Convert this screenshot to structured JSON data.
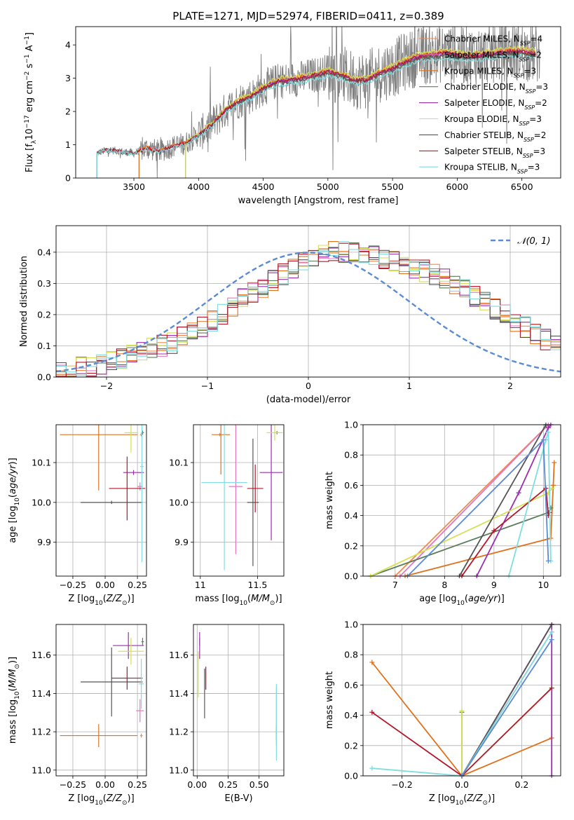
{
  "figure": {
    "title": "PLATE=1271, MJD=52974, FIBERID=0411, z=0.389"
  },
  "colors": {
    "chabrier_miles": "#f08a4b",
    "salpeter_miles": "#e377c2",
    "kroupa_miles": "#e0711c",
    "chabrier_elodie": "#5a7d5a",
    "salpeter_elodie": "#9b2fae",
    "kroupa_elodie": "#d4e157",
    "chabrier_stelib": "#555555",
    "salpeter_stelib": "#b2182b",
    "kroupa_stelib": "#80dde0",
    "data_gray": "#808080",
    "normal_dashed": "#5b8bd6",
    "grid": "#b0b0b0"
  },
  "chart_data": [
    {
      "id": "spectrum",
      "type": "line",
      "title": "PLATE=1271, MJD=52974, FIBERID=0411, z=0.389",
      "xlabel": "wavelength [Angstrom, rest frame]",
      "ylabel": "Flux [f_λ 10^-17 erg cm^-2 s^-1 A^-1]",
      "xlim": [
        3050,
        6800
      ],
      "ylim": [
        0,
        4.55
      ],
      "xticks": [
        3500,
        4000,
        4500,
        5000,
        5500,
        6000,
        6500
      ],
      "yticks": [
        0,
        1,
        2,
        3,
        4
      ],
      "grid": false,
      "legend_position": "top-right",
      "data_series": {
        "name": "",
        "x": [
          3215,
          3300,
          3400,
          3500,
          3600,
          3700,
          3800,
          3900,
          4000,
          4100,
          4200,
          4300,
          4400,
          4500,
          4600,
          4700,
          4800,
          4900,
          5000,
          5100,
          5200,
          5300,
          5400,
          5500,
          5600,
          5700,
          5800,
          5900,
          6000,
          6100,
          6200,
          6300,
          6400,
          6500,
          6600,
          6640
        ],
        "y": [
          0.75,
          0.85,
          0.8,
          0.75,
          0.9,
          0.8,
          0.95,
          1.05,
          1.3,
          1.6,
          2.0,
          2.3,
          2.45,
          2.7,
          2.9,
          2.95,
          3.0,
          3.1,
          3.2,
          3.1,
          2.95,
          2.95,
          3.15,
          3.3,
          3.5,
          3.65,
          3.7,
          3.75,
          3.7,
          3.65,
          3.7,
          3.75,
          3.8,
          3.8,
          3.75,
          3.7
        ]
      },
      "models": [
        {
          "name": "Chabrier MILES, N_SSP=4",
          "legend_main": "Chabrier MILES, N",
          "legend_sub": "SSP",
          "legend_val": "=4",
          "color_key": "chabrier_miles",
          "start": 3540,
          "end": 6610,
          "scale": 1.02
        },
        {
          "name": "Salpeter MILES, N_SSP=2",
          "legend_main": "Salpeter MILES, N",
          "legend_sub": "SSP",
          "legend_val": "=2",
          "color_key": "salpeter_miles",
          "start": 3540,
          "end": 6610,
          "scale": 1.0
        },
        {
          "name": "Kroupa MILES, N_SSP=3",
          "legend_main": "Kroupa MILES, N",
          "legend_sub": "SSP",
          "legend_val": "=3",
          "color_key": "kroupa_miles",
          "start": 3540,
          "end": 6610,
          "scale": 1.01
        },
        {
          "name": "Chabrier ELODIE, N_SSP=3",
          "legend_main": "Chabrier ELODIE, N",
          "legend_sub": "SSP",
          "legend_val": "=3",
          "color_key": "chabrier_elodie",
          "start": 3900,
          "end": 6610,
          "scale": 0.99
        },
        {
          "name": "Salpeter ELODIE, N_SSP=2",
          "legend_main": "Salpeter ELODIE, N",
          "legend_sub": "SSP",
          "legend_val": "=2",
          "color_key": "salpeter_elodie",
          "start": 3900,
          "end": 6610,
          "scale": 1.0
        },
        {
          "name": "Kroupa ELODIE, N_SSP=3",
          "legend_main": "Kroupa ELODIE, N",
          "legend_sub": "SSP",
          "legend_val": "=3",
          "color_key": "kroupa_elodie",
          "start": 3900,
          "end": 6610,
          "scale": 1.03
        },
        {
          "name": "Chabrier STELIB, N_SSP=2",
          "legend_main": "Chabrier STELIB, N",
          "legend_sub": "SSP",
          "legend_val": "=2",
          "color_key": "chabrier_stelib",
          "start": 3215,
          "end": 6610,
          "scale": 0.98
        },
        {
          "name": "Salpeter STELIB, N_SSP=3",
          "legend_main": "Salpeter STELIB, N",
          "legend_sub": "SSP",
          "legend_val": "=3",
          "color_key": "salpeter_stelib",
          "start": 3215,
          "end": 6610,
          "scale": 1.0
        },
        {
          "name": "Kroupa STELIB, N_SSP=3",
          "legend_main": "Kroupa STELIB, N",
          "legend_sub": "SSP",
          "legend_val": "=3",
          "color_key": "kroupa_stelib",
          "start": 3215,
          "end": 6610,
          "scale": 0.96
        }
      ]
    },
    {
      "id": "residuals",
      "type": "histogram",
      "xlabel": "(data-model)/error",
      "ylabel": "Normed distribution",
      "xlim": [
        -2.5,
        2.5
      ],
      "ylim": [
        0,
        0.485
      ],
      "xticks": [
        -2,
        -1,
        0,
        1,
        2
      ],
      "yticks": [
        0.0,
        0.1,
        0.2,
        0.3,
        0.4
      ],
      "grid": true,
      "legend_position": "top-right",
      "legend_label": "𝒩(0, 1)",
      "bin_width": 0.1,
      "bin_start": -2.5,
      "model_order": [
        "chabrier_miles",
        "salpeter_miles",
        "kroupa_miles",
        "chabrier_elodie",
        "salpeter_elodie",
        "kroupa_elodie",
        "chabrier_stelib",
        "salpeter_stelib",
        "kroupa_stelib"
      ],
      "envelope": [
        0.02,
        0.02,
        0.03,
        0.03,
        0.04,
        0.05,
        0.06,
        0.07,
        0.08,
        0.09,
        0.1,
        0.11,
        0.13,
        0.14,
        0.16,
        0.18,
        0.2,
        0.22,
        0.25,
        0.27,
        0.29,
        0.31,
        0.33,
        0.35,
        0.37,
        0.38,
        0.39,
        0.4,
        0.4,
        0.4,
        0.39,
        0.39,
        0.38,
        0.37,
        0.36,
        0.35,
        0.34,
        0.33,
        0.32,
        0.3,
        0.28,
        0.26,
        0.24,
        0.22,
        0.2,
        0.18,
        0.16,
        0.14,
        0.12,
        0.11
      ]
    },
    {
      "id": "age_vs_Z",
      "type": "errorbar",
      "xlabel": "Z [log10(Z/Z☉)]",
      "ylabel": "age [log10(age/yr)]",
      "xlim": [
        -0.38,
        0.32
      ],
      "ylim": [
        9.815,
        10.195
      ],
      "xticks": [
        -0.25,
        0.0,
        0.25
      ],
      "xtick_labels": [
        "−0.25",
        "0.00",
        "0.25"
      ],
      "yticks": [
        9.9,
        10.0,
        10.1
      ],
      "grid": true,
      "points": [
        {
          "model": "chabrier_miles",
          "x": 0.28,
          "xerr": 0.01,
          "y": 10.17,
          "yerr": 0.004
        },
        {
          "model": "salpeter_miles",
          "x": 0.27,
          "xerr": 0.02,
          "y": 10.04,
          "yerr": 0.01
        },
        {
          "model": "kroupa_miles",
          "x": -0.05,
          "xerr": 0.3,
          "y": 10.17,
          "yerr": 0.14
        },
        {
          "model": "chabrier_elodie",
          "x": 0.29,
          "xerr": 0.01,
          "y": 10.175,
          "yerr": 0.005
        },
        {
          "model": "salpeter_elodie",
          "x": 0.22,
          "xerr": 0.08,
          "y": 10.075,
          "yerr": 0.006
        },
        {
          "model": "kroupa_elodie",
          "x": 0.2,
          "xerr": 0.05,
          "y": 10.175,
          "yerr": 0.05
        },
        {
          "model": "chabrier_stelib",
          "x": 0.05,
          "xerr": 0.24,
          "y": 10.0,
          "yerr": 0.004
        },
        {
          "model": "salpeter_stelib",
          "x": 0.17,
          "xerr": 0.14,
          "y": 10.035,
          "yerr": 0.08
        },
        {
          "model": "kroupa_stelib",
          "x": 0.285,
          "xerr": 0.015,
          "y": 10.09,
          "yerr": 0.24
        }
      ]
    },
    {
      "id": "age_vs_mass",
      "type": "errorbar",
      "xlabel": "mass [log10(M/M☉)]",
      "ylabel": "",
      "xlim": [
        10.94,
        11.73
      ],
      "ylim": [
        9.815,
        10.195
      ],
      "xticks": [
        11.0,
        11.5
      ],
      "yticks": [
        9.9,
        10.0,
        10.1
      ],
      "grid": true,
      "points": [
        {
          "model": "chabrier_miles",
          "x": 11.17,
          "xerr": 0.01,
          "y": 10.17,
          "yerr": 0.004
        },
        {
          "model": "salpeter_miles",
          "x": 11.31,
          "xerr": 0.06,
          "y": 10.04,
          "yerr": 0.17
        },
        {
          "model": "kroupa_miles",
          "x": 11.18,
          "xerr": 0.08,
          "y": 10.17,
          "yerr": 0.1
        },
        {
          "model": "chabrier_elodie",
          "x": 11.67,
          "xerr": 0.02,
          "y": 10.175,
          "yerr": 0.004
        },
        {
          "model": "salpeter_elodie",
          "x": 11.62,
          "xerr": 0.1,
          "y": 10.075,
          "yerr": 0.17
        },
        {
          "model": "kroupa_elodie",
          "x": 11.65,
          "xerr": 0.07,
          "y": 10.175,
          "yerr": 0.02
        },
        {
          "model": "chabrier_stelib",
          "x": 11.46,
          "xerr": 0.05,
          "y": 10.0,
          "yerr": 0.16
        },
        {
          "model": "salpeter_stelib",
          "x": 11.48,
          "xerr": 0.07,
          "y": 10.035,
          "yerr": 0.06
        },
        {
          "model": "kroupa_stelib",
          "x": 11.21,
          "xerr": 0.2,
          "y": 10.05,
          "yerr": 0.22
        }
      ]
    },
    {
      "id": "weight_vs_age",
      "type": "line",
      "xlabel": "age [log10(age/yr)]",
      "ylabel": "mass weight",
      "xlim": [
        6.35,
        10.35
      ],
      "ylim": [
        0.0,
        1.0
      ],
      "xticks": [
        7,
        8,
        9,
        10
      ],
      "yticks": [
        0.0,
        0.2,
        0.4,
        0.6,
        0.8,
        1.0
      ],
      "grid": true,
      "series": [
        {
          "model": "chabrier_miles",
          "x": [
            7.0,
            10.1
          ],
          "y": [
            0.0,
            1.0
          ]
        },
        {
          "model": "salpeter_miles",
          "x": [
            7.1,
            10.1
          ],
          "y": [
            0.0,
            1.0
          ]
        },
        {
          "model": "kroupa_miles",
          "x": [
            7.2,
            10.15,
            10.2,
            10.22
          ],
          "y": [
            0.0,
            0.25,
            0.6,
            0.75
          ]
        },
        {
          "model": "chabrier_elodie",
          "x": [
            6.5,
            10.1,
            10.15
          ],
          "y": [
            0.0,
            0.42,
            0.45
          ]
        },
        {
          "model": "salpeter_elodie",
          "x": [
            8.65,
            9.5,
            10.1,
            10.15
          ],
          "y": [
            0.0,
            0.55,
            0.98,
            1.0
          ]
        },
        {
          "model": "kroupa_elodie",
          "x": [
            6.5,
            10.1,
            10.18
          ],
          "y": [
            0.0,
            0.55,
            0.58
          ]
        },
        {
          "model": "chabrier_stelib",
          "x": [
            8.3,
            10.05
          ],
          "y": [
            0.0,
            1.0
          ]
        },
        {
          "model": "salpeter_stelib",
          "x": [
            8.35,
            9.0,
            10.05,
            10.1,
            10.12
          ],
          "y": [
            0.0,
            0.3,
            0.58,
            0.4,
            0.42
          ]
        },
        {
          "model": "kroupa_stelib",
          "x": [
            9.3,
            10.05,
            10.1,
            10.15
          ],
          "y": [
            0.0,
            0.9,
            0.95,
            0.1
          ]
        }
      ],
      "extra_lines": [
        {
          "color_key": "normal_dashed",
          "x": [
            7.25,
            10.0,
            10.1
          ],
          "y": [
            0.0,
            0.9,
            0.1
          ]
        }
      ]
    },
    {
      "id": "mass_vs_Z",
      "type": "errorbar",
      "xlabel": "Z [log10(Z/Z☉)]",
      "ylabel": "mass [log10(M/M☉)]",
      "xlim": [
        -0.38,
        0.32
      ],
      "ylim": [
        10.97,
        11.76
      ],
      "xticks": [
        -0.25,
        0.0,
        0.25
      ],
      "xtick_labels": [
        "−0.25",
        "0.00",
        "0.25"
      ],
      "yticks": [
        11.0,
        11.2,
        11.4,
        11.6
      ],
      "grid": true,
      "points": [
        {
          "model": "chabrier_miles",
          "x": 0.28,
          "xerr": 0.01,
          "y": 11.18,
          "yerr": 0.01
        },
        {
          "model": "salpeter_miles",
          "x": 0.27,
          "xerr": 0.03,
          "y": 11.31,
          "yerr": 0.06
        },
        {
          "model": "kroupa_miles",
          "x": -0.05,
          "xerr": 0.3,
          "y": 11.18,
          "yerr": 0.06
        },
        {
          "model": "chabrier_elodie",
          "x": 0.29,
          "xerr": 0.01,
          "y": 11.67,
          "yerr": 0.02
        },
        {
          "model": "salpeter_elodie",
          "x": 0.18,
          "xerr": 0.12,
          "y": 11.65,
          "yerr": 0.07
        },
        {
          "model": "kroupa_elodie",
          "x": 0.2,
          "xerr": 0.1,
          "y": 11.62,
          "yerr": 0.07
        },
        {
          "model": "chabrier_stelib",
          "x": 0.05,
          "xerr": 0.24,
          "y": 11.46,
          "yerr": 0.18
        },
        {
          "model": "salpeter_stelib",
          "x": 0.17,
          "xerr": 0.12,
          "y": 11.48,
          "yerr": 0.06
        },
        {
          "model": "kroupa_stelib",
          "x": 0.28,
          "xerr": 0.02,
          "y": 11.45,
          "yerr": 0.13
        }
      ]
    },
    {
      "id": "mass_vs_ebv",
      "type": "errorbar",
      "xlabel": "E(B-V)",
      "ylabel": "",
      "xlim": [
        -0.03,
        0.7
      ],
      "ylim": [
        10.97,
        11.76
      ],
      "xticks": [
        0.0,
        0.25,
        0.5
      ],
      "xtick_labels": [
        "0.00",
        "0.25",
        "0.50"
      ],
      "yticks": [
        11.0,
        11.2,
        11.4,
        11.6
      ],
      "grid": true,
      "points": [
        {
          "model": "chabrier_miles",
          "x": 0.64,
          "xerr": 0.002,
          "y": 11.18,
          "yerr": 0.02
        },
        {
          "model": "salpeter_miles",
          "x": 0.64,
          "xerr": 0.002,
          "y": 11.31,
          "yerr": 0.12
        },
        {
          "model": "kroupa_miles",
          "x": 0.64,
          "xerr": 0.002,
          "y": 11.18,
          "yerr": 0.05
        },
        {
          "model": "chabrier_elodie",
          "x": 0.02,
          "xerr": 0.002,
          "y": 11.67,
          "yerr": 0.02
        },
        {
          "model": "salpeter_elodie",
          "x": 0.02,
          "xerr": 0.002,
          "y": 11.65,
          "yerr": 0.07
        },
        {
          "model": "kroupa_elodie",
          "x": 0.01,
          "xerr": 0.002,
          "y": 11.5,
          "yerr": 0.12
        },
        {
          "model": "chabrier_stelib",
          "x": 0.06,
          "xerr": 0.002,
          "y": 11.4,
          "yerr": 0.13
        },
        {
          "model": "salpeter_stelib",
          "x": 0.07,
          "xerr": 0.002,
          "y": 11.48,
          "yerr": 0.06
        },
        {
          "model": "kroupa_stelib",
          "x": 0.64,
          "xerr": 0.002,
          "y": 11.25,
          "yerr": 0.2
        }
      ]
    },
    {
      "id": "weight_vs_Z",
      "type": "line",
      "xlabel": "Z [log10(Z/Z☉)]",
      "ylabel": "mass weight",
      "xlim": [
        -0.33,
        0.33
      ],
      "ylim": [
        0.0,
        1.0
      ],
      "xticks": [
        -0.2,
        0.0,
        0.2
      ],
      "xtick_labels": [
        "−0.2",
        "0.0",
        "0.2"
      ],
      "yticks": [
        0.0,
        0.2,
        0.4,
        0.6,
        0.8,
        1.0
      ],
      "grid": true,
      "series": [
        {
          "model": "chabrier_miles",
          "x": [
            0.0,
            0.3
          ],
          "y": [
            0.0,
            0.95
          ]
        },
        {
          "model": "salpeter_miles",
          "x": [
            0.0,
            0.3
          ],
          "y": [
            0.0,
            1.0
          ]
        },
        {
          "model": "kroupa_miles",
          "x": [
            -0.3,
            0.0,
            0.3
          ],
          "y": [
            0.75,
            0.0,
            0.25
          ]
        },
        {
          "model": "chabrier_elodie",
          "x": [
            0.0,
            0.0
          ],
          "y": [
            0.0,
            0.42
          ]
        },
        {
          "model": "salpeter_elodie",
          "x": [
            0.0,
            0.3,
            0.3
          ],
          "y": [
            0.0,
            1.0,
            0.0
          ]
        },
        {
          "model": "kroupa_elodie",
          "x": [
            0.0,
            0.0,
            0.3
          ],
          "y": [
            0.43,
            0.0,
            0.58
          ]
        },
        {
          "model": "chabrier_stelib",
          "x": [
            0.0,
            0.3
          ],
          "y": [
            0.0,
            1.0
          ]
        },
        {
          "model": "salpeter_stelib",
          "x": [
            -0.3,
            0.0,
            0.3
          ],
          "y": [
            0.42,
            0.0,
            0.58
          ]
        },
        {
          "model": "kroupa_stelib",
          "x": [
            -0.3,
            0.0,
            0.3
          ],
          "y": [
            0.05,
            0.0,
            0.95
          ]
        }
      ],
      "extra_lines": [
        {
          "color_key": "normal_dashed",
          "x": [
            0.0,
            0.3
          ],
          "y": [
            0.0,
            0.9
          ]
        }
      ]
    }
  ]
}
